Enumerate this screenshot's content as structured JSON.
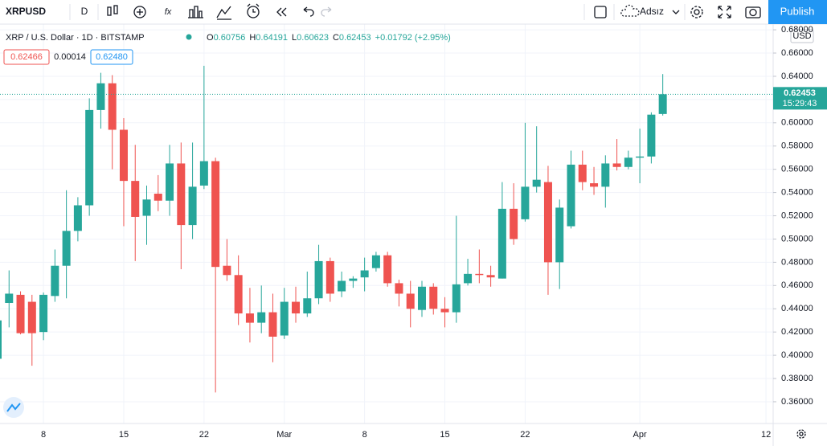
{
  "toolbar": {
    "symbol": "XRPUSD",
    "interval": "D",
    "layout_name": "Adsız",
    "publish": "Publish"
  },
  "legend": {
    "title": "XRP / U.S. Dollar · 1D · BITSTAMP",
    "ohlc_prefixes": [
      "O",
      "H",
      "L",
      "C"
    ],
    "change": "+0.01792 (+2.95%)"
  },
  "trade": {
    "sell": "0.62466",
    "spread": "0.00014",
    "buy": "0.62480"
  },
  "price_axis": {
    "currency": "USD",
    "countdown": "15:29:43"
  },
  "chart_data": {
    "type": "candlestick",
    "categories": [
      null,
      null,
      null,
      null,
      "8",
      null,
      null,
      null,
      null,
      null,
      null,
      "15",
      null,
      null,
      null,
      null,
      null,
      null,
      "22",
      null,
      null,
      null,
      null,
      null,
      null,
      "Mar",
      null,
      null,
      null,
      null,
      null,
      null,
      "8",
      null,
      null,
      null,
      null,
      null,
      null,
      "15",
      null,
      null,
      null,
      null,
      null,
      null,
      "22",
      null,
      null,
      null,
      null,
      null,
      null,
      null,
      null,
      null,
      "Apr",
      null,
      null,
      null,
      null,
      null,
      null,
      null,
      null,
      null,
      null,
      "12"
    ],
    "open": [
      0.397,
      0.445,
      0.452,
      0.446,
      0.42,
      0.451,
      0.477,
      0.507,
      0.529,
      0.611,
      0.634,
      0.594,
      0.55,
      0.52,
      0.539,
      0.533,
      0.565,
      0.512,
      0.546,
      0.567,
      0.477,
      0.469,
      0.436,
      0.428,
      0.437,
      0.417,
      0.446,
      0.436,
      0.449,
      0.481,
      0.455,
      0.464,
      0.467,
      0.475,
      0.486,
      0.462,
      0.453,
      0.439,
      0.459,
      0.44,
      0.437,
      0.462,
      0.47,
      0.469,
      0.466,
      0.526,
      0.517,
      0.545,
      0.549,
      0.48,
      0.511,
      0.564,
      0.548,
      0.545,
      0.565,
      0.562,
      0.57,
      0.571,
      0.60756,
      null,
      null,
      null,
      null,
      null,
      null,
      null,
      null,
      null
    ],
    "high": [
      0.44,
      0.473,
      0.455,
      0.452,
      0.454,
      0.491,
      0.542,
      0.536,
      0.621,
      0.643,
      0.641,
      0.604,
      0.581,
      0.546,
      0.555,
      0.581,
      0.583,
      0.583,
      0.649,
      0.57,
      0.5,
      0.486,
      0.458,
      0.46,
      0.453,
      0.458,
      0.459,
      0.472,
      0.495,
      0.484,
      0.472,
      0.468,
      0.484,
      0.489,
      0.489,
      0.465,
      0.464,
      0.464,
      0.462,
      0.45,
      0.52,
      0.483,
      0.491,
      0.477,
      0.549,
      0.548,
      0.6,
      0.597,
      0.563,
      0.534,
      0.576,
      0.576,
      0.562,
      0.572,
      0.586,
      0.576,
      0.595,
      0.609,
      0.64191,
      null,
      null,
      null,
      null,
      null,
      null,
      null,
      null,
      null
    ],
    "low": [
      0.39,
      0.424,
      0.418,
      0.391,
      0.413,
      0.446,
      0.449,
      0.498,
      0.52,
      0.595,
      0.56,
      0.511,
      0.481,
      0.495,
      0.524,
      0.52,
      0.474,
      0.5,
      0.543,
      0.368,
      0.464,
      0.426,
      0.411,
      0.419,
      0.394,
      0.414,
      0.428,
      0.433,
      0.444,
      0.446,
      0.45,
      0.458,
      0.455,
      0.472,
      0.459,
      0.442,
      0.424,
      0.433,
      0.435,
      0.424,
      0.428,
      0.46,
      0.462,
      0.459,
      0.466,
      0.495,
      0.515,
      0.54,
      0.452,
      0.457,
      0.509,
      0.542,
      0.538,
      0.527,
      0.559,
      0.56,
      0.548,
      0.565,
      0.60623,
      null,
      null,
      null,
      null,
      null,
      null,
      null,
      null,
      null
    ],
    "close": [
      0.43,
      0.453,
      0.419,
      0.419,
      0.452,
      0.477,
      0.507,
      0.529,
      0.611,
      0.634,
      0.594,
      0.55,
      0.519,
      0.534,
      0.533,
      0.565,
      0.512,
      0.545,
      0.567,
      0.476,
      0.469,
      0.436,
      0.428,
      0.437,
      0.416,
      0.446,
      0.436,
      0.449,
      0.481,
      0.453,
      0.464,
      0.466,
      0.473,
      0.486,
      0.462,
      0.453,
      0.44,
      0.459,
      0.44,
      0.437,
      0.461,
      0.47,
      0.469,
      0.467,
      0.526,
      0.5,
      0.545,
      0.551,
      0.48,
      0.527,
      0.564,
      0.549,
      0.545,
      0.565,
      0.562,
      0.57,
      0.571,
      0.607,
      0.62453,
      null,
      null,
      null,
      null,
      null,
      null,
      null,
      null,
      null
    ],
    "up_color": "#26a69a",
    "down_color": "#ef5350",
    "ylim": [
      0.3413,
      0.6849
    ],
    "yticks": [
      {
        "value": 0.36,
        "label": "0.36000"
      },
      {
        "value": 0.38,
        "label": "0.38000"
      },
      {
        "value": 0.4,
        "label": "0.40000"
      },
      {
        "value": 0.42,
        "label": "0.42000"
      },
      {
        "value": 0.44,
        "label": "0.44000"
      },
      {
        "value": 0.46,
        "label": "0.46000"
      },
      {
        "value": 0.48,
        "label": "0.48000"
      },
      {
        "value": 0.5,
        "label": "0.50000"
      },
      {
        "value": 0.52,
        "label": "0.52000"
      },
      {
        "value": 0.54,
        "label": "0.54000"
      },
      {
        "value": 0.56,
        "label": "0.56000"
      },
      {
        "value": 0.58,
        "label": "0.58000"
      },
      {
        "value": 0.6,
        "label": "0.60000"
      },
      {
        "value": 0.62,
        "label": "0.62000"
      },
      {
        "value": 0.64,
        "label": "0.64000"
      },
      {
        "value": 0.66,
        "label": "0.66000"
      },
      {
        "value": 0.68,
        "label": "0.68000"
      }
    ],
    "grid": true
  }
}
